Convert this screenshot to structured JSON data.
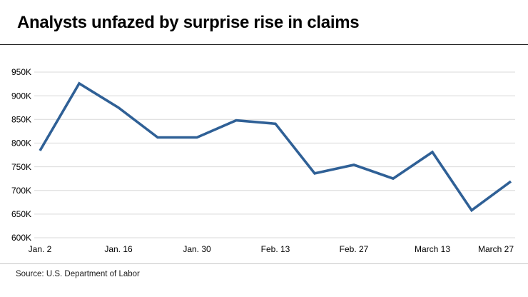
{
  "title": "Analysts unfazed by surprise rise in claims",
  "source": "Source: U.S. Department of Labor",
  "colors": {
    "line": "#2f6096",
    "grid": "#d9d9d9",
    "title_rule": "#1a1a1a",
    "footer_rule": "#c9c9c9",
    "text": "#000000"
  },
  "chart_data": {
    "type": "line",
    "title": "Analysts unfazed by surprise rise in claims",
    "source": "Source: U.S. Department of Labor",
    "x": [
      "Jan. 2",
      "Jan. 9",
      "Jan. 16",
      "Jan. 23",
      "Jan. 30",
      "Feb. 6",
      "Feb. 13",
      "Feb. 20",
      "Feb. 27",
      "March 6",
      "March 13",
      "March 20",
      "March 27"
    ],
    "values": [
      784000,
      926000,
      875000,
      812000,
      812000,
      848000,
      841000,
      736000,
      754000,
      725000,
      781000,
      658000,
      719000
    ],
    "x_tick_labels": [
      "Jan. 2",
      "Jan. 16",
      "Jan. 30",
      "Feb. 13",
      "Feb. 27",
      "March 13",
      "March 27"
    ],
    "x_tick_index": [
      0,
      2,
      4,
      6,
      8,
      10,
      12
    ],
    "y_ticks": [
      600000,
      650000,
      700000,
      750000,
      800000,
      850000,
      900000,
      950000
    ],
    "y_tick_labels": [
      "600K",
      "650K",
      "700K",
      "750K",
      "800K",
      "850K",
      "900K",
      "950K"
    ],
    "ylim": [
      600000,
      950000
    ],
    "grid": true,
    "legend": "none"
  }
}
